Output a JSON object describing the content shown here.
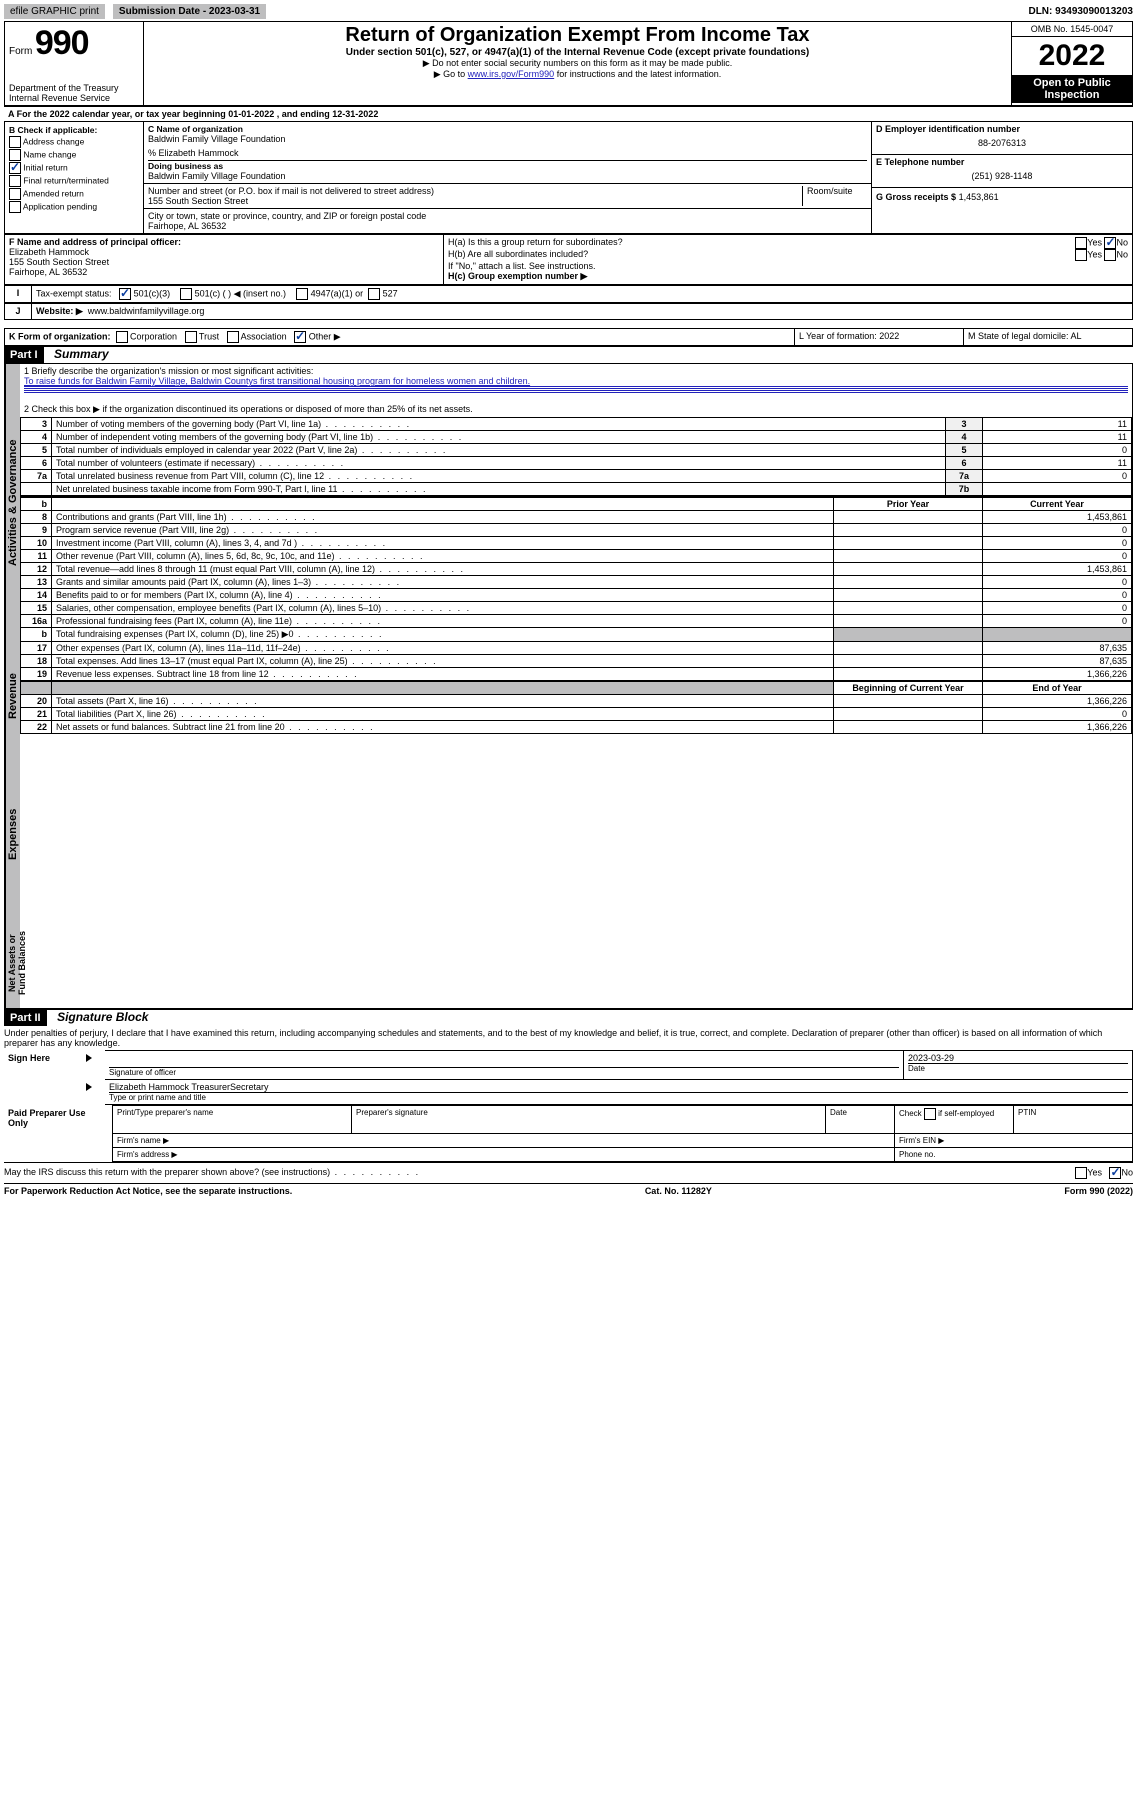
{
  "topbar": {
    "efile": "efile GRAPHIC print",
    "submission_label": "Submission Date - 2023-03-31",
    "dln": "DLN: 93493090013203"
  },
  "header": {
    "form_prefix": "Form",
    "form_no": "990",
    "dept": "Department of the Treasury",
    "irs": "Internal Revenue Service",
    "title": "Return of Organization Exempt From Income Tax",
    "under": "Under section 501(c), 527, or 4947(a)(1) of the Internal Revenue Code (except private foundations)",
    "ssn": "▶ Do not enter social security numbers on this form as it may be made public.",
    "goto_pre": "▶ Go to ",
    "goto_link": "www.irs.gov/Form990",
    "goto_post": " for instructions and the latest information.",
    "omb": "OMB No. 1545-0047",
    "year": "2022",
    "open": "Open to Public Inspection"
  },
  "section_a": "A For the 2022 calendar year, or tax year beginning 01-01-2022   , and ending 12-31-2022",
  "box_b": {
    "label": "B Check if applicable:",
    "items": [
      "Address change",
      "Name change",
      "Initial return",
      "Final return/terminated",
      "Amended return",
      "Application pending"
    ],
    "checked_idx": 2
  },
  "box_c": {
    "name_label": "C Name of organization",
    "name": "Baldwin Family Village Foundation",
    "care_of": "% Elizabeth Hammock",
    "dba_label": "Doing business as",
    "dba": "Baldwin Family Village Foundation",
    "addr_label": "Number and street (or P.O. box if mail is not delivered to street address)",
    "room_label": "Room/suite",
    "addr": "155 South Section Street",
    "city_label": "City or town, state or province, country, and ZIP or foreign postal code",
    "city": "Fairhope, AL  36532"
  },
  "box_d": {
    "ein_label": "D Employer identification number",
    "ein": "88-2076313",
    "phone_label": "E Telephone number",
    "phone": "(251) 928-1148",
    "gross_label": "G Gross receipts $",
    "gross": "1,453,861"
  },
  "box_f": {
    "label": "F Name and address of principal officer:",
    "name": "Elizabeth Hammock",
    "addr1": "155 South Section Street",
    "addr2": "Fairhope, AL  36532"
  },
  "box_h": {
    "a_label": "H(a)  Is this a group return for subordinates?",
    "b_label": "H(b)  Are all subordinates included?",
    "note": "If \"No,\" attach a list. See instructions.",
    "c_label": "H(c)  Group exemption number ▶",
    "yes": "Yes",
    "no": "No"
  },
  "row_i": {
    "label": "Tax-exempt status:",
    "opts": [
      "501(c)(3)",
      "501(c) (  ) ◀ (insert no.)",
      "4947(a)(1) or",
      "527"
    ]
  },
  "row_j": {
    "label": "Website: ▶",
    "val": "www.baldwinfamilyvillage.org"
  },
  "row_k": {
    "label": "K Form of organization:",
    "opts": [
      "Corporation",
      "Trust",
      "Association",
      "Other ▶"
    ],
    "checked_idx": 3,
    "l_label": "L Year of formation: 2022",
    "m_label": "M State of legal domicile: AL"
  },
  "part1": {
    "header": "Part I",
    "title": "Summary",
    "mission_label": "1  Briefly describe the organization's mission or most significant activities:",
    "mission": "To raise funds for Baldwin Family Village, Baldwin Countys first transitional housing program for homeless women and children.",
    "line2": "2   Check this box ▶      if the organization discontinued its operations or disposed of more than 25% of its net assets.",
    "lines_gov": [
      {
        "n": "3",
        "t": "Number of voting members of the governing body (Part VI, line 1a)",
        "k": "3",
        "v": "11"
      },
      {
        "n": "4",
        "t": "Number of independent voting members of the governing body (Part VI, line 1b)",
        "k": "4",
        "v": "11"
      },
      {
        "n": "5",
        "t": "Total number of individuals employed in calendar year 2022 (Part V, line 2a)",
        "k": "5",
        "v": "0"
      },
      {
        "n": "6",
        "t": "Total number of volunteers (estimate if necessary)",
        "k": "6",
        "v": "11"
      },
      {
        "n": "7a",
        "t": "Total unrelated business revenue from Part VIII, column (C), line 12",
        "k": "7a",
        "v": "0"
      },
      {
        "n": "",
        "t": "Net unrelated business taxable income from Form 990-T, Part I, line 11",
        "k": "7b",
        "v": ""
      }
    ],
    "col_prior": "Prior Year",
    "col_current": "Current Year",
    "rev_lines": [
      {
        "n": "8",
        "t": "Contributions and grants (Part VIII, line 1h)",
        "p": "",
        "c": "1,453,861"
      },
      {
        "n": "9",
        "t": "Program service revenue (Part VIII, line 2g)",
        "p": "",
        "c": "0"
      },
      {
        "n": "10",
        "t": "Investment income (Part VIII, column (A), lines 3, 4, and 7d )",
        "p": "",
        "c": "0"
      },
      {
        "n": "11",
        "t": "Other revenue (Part VIII, column (A), lines 5, 6d, 8c, 9c, 10c, and 11e)",
        "p": "",
        "c": "0"
      },
      {
        "n": "12",
        "t": "Total revenue—add lines 8 through 11 (must equal Part VIII, column (A), line 12)",
        "p": "",
        "c": "1,453,861"
      }
    ],
    "exp_lines": [
      {
        "n": "13",
        "t": "Grants and similar amounts paid (Part IX, column (A), lines 1–3)",
        "p": "",
        "c": "0"
      },
      {
        "n": "14",
        "t": "Benefits paid to or for members (Part IX, column (A), line 4)",
        "p": "",
        "c": "0"
      },
      {
        "n": "15",
        "t": "Salaries, other compensation, employee benefits (Part IX, column (A), lines 5–10)",
        "p": "",
        "c": "0"
      },
      {
        "n": "16a",
        "t": "Professional fundraising fees (Part IX, column (A), line 11e)",
        "p": "",
        "c": "0"
      },
      {
        "n": "b",
        "t": "Total fundraising expenses (Part IX, column (D), line 25) ▶0",
        "p": "grey",
        "c": "grey"
      },
      {
        "n": "17",
        "t": "Other expenses (Part IX, column (A), lines 11a–11d, 11f–24e)",
        "p": "",
        "c": "87,635"
      },
      {
        "n": "18",
        "t": "Total expenses. Add lines 13–17 (must equal Part IX, column (A), line 25)",
        "p": "",
        "c": "87,635"
      },
      {
        "n": "19",
        "t": "Revenue less expenses. Subtract line 18 from line 12",
        "p": "",
        "c": "1,366,226"
      }
    ],
    "col_begin": "Beginning of Current Year",
    "col_end": "End of Year",
    "net_lines": [
      {
        "n": "20",
        "t": "Total assets (Part X, line 16)",
        "p": "",
        "c": "1,366,226"
      },
      {
        "n": "21",
        "t": "Total liabilities (Part X, line 26)",
        "p": "",
        "c": "0"
      },
      {
        "n": "22",
        "t": "Net assets or fund balances. Subtract line 21 from line 20",
        "p": "",
        "c": "1,366,226"
      }
    ],
    "vert_gov": "Activities & Governance",
    "vert_rev": "Revenue",
    "vert_exp": "Expenses",
    "vert_net": "Net Assets or Fund Balances"
  },
  "part2": {
    "header": "Part II",
    "title": "Signature Block",
    "declaration": "Under penalties of perjury, I declare that I have examined this return, including accompanying schedules and statements, and to the best of my knowledge and belief, it is true, correct, and complete. Declaration of preparer (other than officer) is based on all information of which preparer has any knowledge.",
    "sign_here": "Sign Here",
    "sig_officer": "Signature of officer",
    "date": "Date",
    "sig_date": "2023-03-29",
    "name_title": "Elizabeth Hammock  TreasurerSecretary",
    "name_title_label": "Type or print name and title",
    "paid": "Paid Preparer Use Only",
    "prep_name": "Print/Type preparer's name",
    "prep_sig": "Preparer's signature",
    "prep_date": "Date",
    "prep_check": "Check        if self-employed",
    "ptin": "PTIN",
    "firm_name": "Firm's name   ▶",
    "firm_ein": "Firm's EIN ▶",
    "firm_addr": "Firm's address ▶",
    "phone": "Phone no.",
    "may_irs": "May the IRS discuss this return with the preparer shown above? (see instructions)"
  },
  "footer": {
    "left": "For Paperwork Reduction Act Notice, see the separate instructions.",
    "mid": "Cat. No. 11282Y",
    "right": "Form 990 (2022)"
  }
}
